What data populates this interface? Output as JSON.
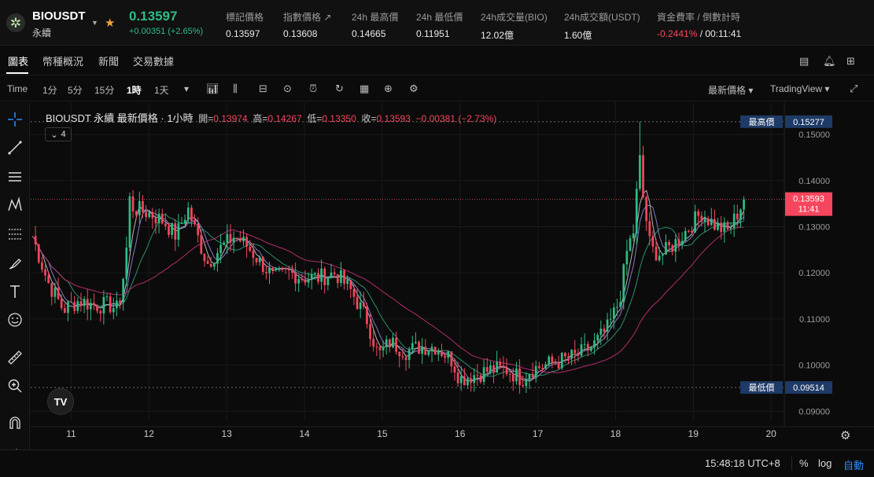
{
  "header": {
    "symbol": "BIOUSDT",
    "contract": "永續",
    "price": "0.13597",
    "change": "+0.00351 (+2.65%)",
    "stats": [
      {
        "label": "標記價格",
        "value": "0.13597"
      },
      {
        "label": "指數價格",
        "value": "0.13608"
      },
      {
        "label": "24h 最高價",
        "value": "0.14665"
      },
      {
        "label": "24h 最低價",
        "value": "0.11951"
      },
      {
        "label": "24h成交量(BIO)",
        "value": "12.02億"
      },
      {
        "label": "24h成交額(USDT)",
        "value": "1.60億"
      },
      {
        "label": "資金費率 / 倒數計時",
        "value_neg": "-0.2441%",
        "value": " / 00:11:41"
      }
    ]
  },
  "nav": {
    "tabs": [
      "圖表",
      "幣種概況",
      "新聞",
      "交易數據"
    ]
  },
  "toolbar": {
    "time": "Time",
    "intervals": [
      "1分",
      "5分",
      "15分",
      "1時",
      "1天"
    ],
    "active_interval": "1時",
    "price_type": "最新價格",
    "view": "TradingView"
  },
  "legend": {
    "title": "BIOUSDT 永續 最新價格 · 1小時",
    "open_label": "開=",
    "open": "0.13974",
    "high_label": "高=",
    "high": "0.14267",
    "low_label": "低=",
    "low": "0.13350",
    "close_label": "收=",
    "close": "0.13593",
    "diff": "−0.00381 (−2.73%)",
    "indicator_count": "4"
  },
  "chart_data": {
    "type": "candlestick",
    "title": "BIOUSDT 永續 最新價格 · 1小時",
    "x_ticks": [
      "11",
      "12",
      "13",
      "14",
      "15",
      "16",
      "17",
      "18",
      "19",
      "20"
    ],
    "y_ticks": [
      "0.15000",
      "0.14000",
      "0.13000",
      "0.12000",
      "0.11000",
      "0.10000",
      "0.09000"
    ],
    "ylim": [
      0.088,
      0.157
    ],
    "markers": {
      "high_label": "最高價",
      "high": 0.15277,
      "high_text": "0.15277",
      "low_label": "最低價",
      "low": 0.09514,
      "low_text": "0.09514",
      "last": 0.13593,
      "last_text": "0.13593",
      "countdown": "11:41"
    },
    "close_path": [
      [
        10.5,
        0.128
      ],
      [
        10.7,
        0.118
      ],
      [
        10.9,
        0.112
      ],
      [
        11.1,
        0.114
      ],
      [
        11.3,
        0.113
      ],
      [
        11.5,
        0.113
      ],
      [
        11.6,
        0.112
      ],
      [
        11.7,
        0.122
      ],
      [
        11.75,
        0.136
      ],
      [
        11.8,
        0.134
      ],
      [
        12.0,
        0.133
      ],
      [
        12.2,
        0.131
      ],
      [
        12.35,
        0.128
      ],
      [
        12.5,
        0.134
      ],
      [
        12.6,
        0.129
      ],
      [
        12.75,
        0.122
      ],
      [
        12.9,
        0.125
      ],
      [
        13.1,
        0.128
      ],
      [
        13.25,
        0.126
      ],
      [
        13.4,
        0.123
      ],
      [
        13.6,
        0.119
      ],
      [
        13.8,
        0.12
      ],
      [
        14.0,
        0.119
      ],
      [
        14.2,
        0.119
      ],
      [
        14.4,
        0.12
      ],
      [
        14.6,
        0.116
      ],
      [
        14.8,
        0.11
      ],
      [
        14.95,
        0.102
      ],
      [
        15.1,
        0.105
      ],
      [
        15.3,
        0.103
      ],
      [
        15.5,
        0.104
      ],
      [
        15.7,
        0.104
      ],
      [
        15.9,
        0.101
      ],
      [
        16.0,
        0.097
      ],
      [
        16.2,
        0.098
      ],
      [
        16.4,
        0.099
      ],
      [
        16.6,
        0.099
      ],
      [
        16.8,
        0.097
      ],
      [
        16.9,
        0.099
      ],
      [
        17.1,
        0.1
      ],
      [
        17.3,
        0.101
      ],
      [
        17.5,
        0.102
      ],
      [
        17.7,
        0.104
      ],
      [
        17.9,
        0.108
      ],
      [
        18.05,
        0.114
      ],
      [
        18.15,
        0.125
      ],
      [
        18.25,
        0.13
      ],
      [
        18.3,
        0.147
      ],
      [
        18.35,
        0.137
      ],
      [
        18.45,
        0.125
      ],
      [
        18.6,
        0.124
      ],
      [
        18.8,
        0.127
      ],
      [
        19.0,
        0.131
      ],
      [
        19.1,
        0.133
      ],
      [
        19.3,
        0.13
      ],
      [
        19.45,
        0.129
      ],
      [
        19.6,
        0.134
      ],
      [
        19.65,
        0.136
      ]
    ],
    "ma_lines": [
      {
        "color": "#8f86d8",
        "lag": 0.22
      },
      {
        "color": "#2e9d7a",
        "lag": 0.45
      },
      {
        "color": "#c6c6c6",
        "lag": 0.12
      },
      {
        "color": "#c5317a",
        "lag": 1.35
      }
    ],
    "grid": true,
    "y_axis_side": "right"
  },
  "bottom": {
    "time": "15:48:18 UTC+8",
    "percent": "%",
    "log": "log",
    "auto": "自動"
  },
  "colors": {
    "up": "#2ebd85",
    "down": "#f6465d",
    "tag_bg": "#1e3a66"
  }
}
